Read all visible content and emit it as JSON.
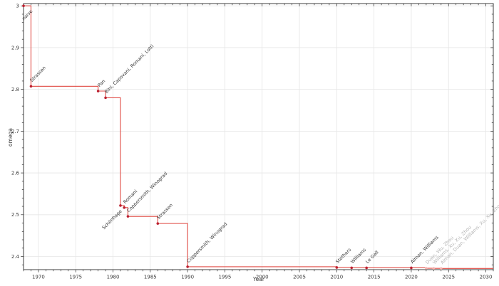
{
  "chart_data": {
    "type": "line",
    "subtype": "step-post",
    "title": "",
    "xlabel": "Year",
    "ylabel": "omega",
    "xlim": [
      1968,
      2031
    ],
    "ylim": [
      2.3685,
      3.0055
    ],
    "x_major_ticks": [
      1970,
      1975,
      1980,
      1985,
      1990,
      1995,
      2000,
      2005,
      2010,
      2015,
      2020,
      2025,
      2030
    ],
    "x_minor_step": 1,
    "y_major_ticks": [
      2.4,
      2.5,
      2.6,
      2.7,
      2.8,
      2.9,
      3
    ],
    "y_minor_step": 0.02,
    "grid": true,
    "legend_position": "none",
    "colors": {
      "line": "#e04b44",
      "marker": "#bb2030",
      "marker_recent": "#f3b3af",
      "annotation": "#3a3a3a",
      "annotation_recent": "#b5b5b5",
      "grid": "#e6e6e6",
      "spine": "#2b2b2b",
      "tick_label": "#3a3a3a",
      "background": "#ffffff"
    },
    "points": [
      {
        "year": 1968,
        "omega": 3.0,
        "label": "naive",
        "label_year": 1969,
        "placement": "below",
        "recent": false
      },
      {
        "year": 1969,
        "omega": 2.8074,
        "label": "Strassen",
        "placement": "above",
        "recent": false
      },
      {
        "year": 1978,
        "omega": 2.796,
        "label": "Pan",
        "placement": "above",
        "recent": false
      },
      {
        "year": 1979,
        "omega": 2.78,
        "label": "Bini, Capovani, Romani, Lotti",
        "placement": "above",
        "recent": false
      },
      {
        "year": 1981,
        "omega": 2.522,
        "label": "Schönhage",
        "placement": "below",
        "recent": false
      },
      {
        "year": 1981.5,
        "omega": 2.517,
        "label": "Romani",
        "placement": "above",
        "recent": false
      },
      {
        "year": 1982,
        "omega": 2.496,
        "label": "Coppersmith, Winograd",
        "placement": "above",
        "recent": false
      },
      {
        "year": 1986,
        "omega": 2.479,
        "label": "Strassen",
        "placement": "above",
        "recent": false
      },
      {
        "year": 1990,
        "omega": 2.3755,
        "label": "Coppersmith, Winograd",
        "placement": "above",
        "recent": false
      },
      {
        "year": 2010,
        "omega": 2.3737,
        "label": "Stothers",
        "placement": "above",
        "recent": false
      },
      {
        "year": 2012,
        "omega": 2.3729,
        "label": "Williams",
        "placement": "above",
        "recent": false
      },
      {
        "year": 2014,
        "omega": 2.3728639,
        "label": "Le Gall",
        "placement": "above",
        "recent": false
      },
      {
        "year": 2020,
        "omega": 2.3728596,
        "label": "Alman, Williams",
        "placement": "above",
        "recent": false
      },
      {
        "year": 2022,
        "omega": 2.371866,
        "label": "Duan, Wu, Zhou",
        "placement": "above",
        "recent": true
      },
      {
        "year": 2023,
        "omega": 2.371552,
        "label": "Williams, Xu, Xu, Zhou",
        "placement": "above",
        "recent": true
      },
      {
        "year": 2024,
        "omega": 2.371339,
        "label": "Alman, Duan, Williams, Xu, Xu, Zhou",
        "placement": "above",
        "recent": true
      }
    ]
  }
}
